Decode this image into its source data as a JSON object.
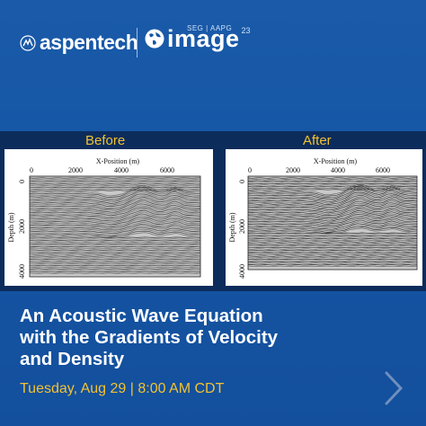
{
  "brand": {
    "aspentech": "aspentech",
    "image_event": "image",
    "image_superscript": "SEG | AAPG",
    "image_year": "23"
  },
  "panels": {
    "before": {
      "title": "Before",
      "xlabel": "X-Position (m)",
      "ylabel": "Depth (m)",
      "xticks": [
        "0",
        "2000",
        "4000",
        "6000"
      ],
      "yticks": [
        "0",
        "2000",
        "4000"
      ]
    },
    "after": {
      "title": "After",
      "xlabel": "X-Position (m)",
      "ylabel": "Depth (m)",
      "xticks": [
        "0",
        "2000",
        "4000",
        "6000"
      ],
      "yticks": [
        "0",
        "2000",
        "4000"
      ]
    }
  },
  "headline": {
    "line1": "An Acoustic Wave Equation",
    "line2": "with the Gradients of Velocity",
    "line3": "and Density"
  },
  "event_date": "Tuesday, Aug 29 | 8:00 AM CDT",
  "icons": {
    "logo": "aspentech-logo-icon",
    "globe": "globe-icon",
    "next": "chevron-right-icon"
  },
  "colors": {
    "accent": "#f2c232",
    "background": "#1556a6",
    "band": "#0c2c5c"
  }
}
